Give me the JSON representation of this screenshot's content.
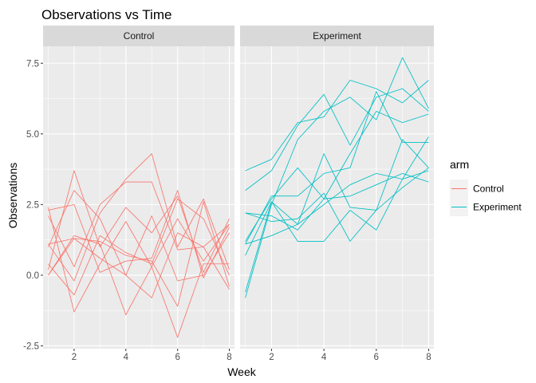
{
  "chart_data": {
    "type": "line",
    "title": "Observations vs Time",
    "xlabel": "Week",
    "ylabel": "Observations",
    "xlim": [
      0.8,
      8.2
    ],
    "ylim": [
      -2.6,
      8.1
    ],
    "x_ticks": [
      2,
      4,
      6,
      8
    ],
    "y_ticks": [
      -2.5,
      0,
      2.5,
      5,
      7.5
    ],
    "y_tick_labels": [
      "-2.5",
      "0.0",
      "2.5",
      "5.0",
      "7.5"
    ],
    "grid": true,
    "legend": {
      "title": "arm",
      "position": "right",
      "entries": [
        {
          "label": "Control",
          "color": "#F8766D"
        },
        {
          "label": "Experiment",
          "color": "#00BFC4"
        }
      ]
    },
    "x": [
      1,
      2,
      3,
      4,
      5,
      6,
      7,
      8
    ],
    "panels": [
      {
        "name": "Control",
        "color": "#F8766D",
        "series": [
          {
            "values": [
              0.2,
              3.7,
              1.0,
              2.4,
              1.5,
              2.8,
              0.1,
              2.0
            ]
          },
          {
            "values": [
              1.1,
              -0.2,
              2.2,
              3.4,
              4.3,
              1.0,
              2.7,
              0.2
            ]
          },
          {
            "values": [
              0.0,
              1.4,
              1.1,
              -1.4,
              0.3,
              -2.2,
              0.4,
              0.4
            ]
          },
          {
            "values": [
              2.3,
              2.5,
              0.1,
              0.5,
              0.6,
              3.0,
              -0.1,
              1.7
            ]
          },
          {
            "values": [
              2.1,
              0.3,
              2.5,
              3.3,
              3.3,
              0.9,
              1.0,
              -0.5
            ]
          },
          {
            "values": [
              0.4,
              -0.7,
              1.4,
              0.8,
              0.4,
              2.7,
              2.0,
              0.0
            ]
          },
          {
            "values": [
              1.0,
              3.0,
              2.0,
              0.0,
              2.1,
              -0.2,
              0.0,
              1.5
            ]
          },
          {
            "values": [
              0.0,
              1.3,
              0.6,
              0.0,
              -0.8,
              1.5,
              1.0,
              1.8
            ]
          },
          {
            "values": [
              1.1,
              1.3,
              1.2,
              0.7,
              0.5,
              -1.1,
              2.6,
              -0.4
            ]
          },
          {
            "values": [
              2.4,
              -1.3,
              0.4,
              1.9,
              0.3,
              2.0,
              0.5,
              1.8
            ]
          }
        ]
      },
      {
        "name": "Experiment",
        "color": "#00BFC4",
        "series": [
          {
            "values": [
              3.7,
              4.1,
              5.4,
              5.6,
              6.9,
              6.6,
              6.1,
              6.9
            ]
          },
          {
            "values": [
              3.0,
              3.7,
              5.3,
              6.4,
              4.6,
              6.3,
              6.6,
              5.8
            ]
          },
          {
            "values": [
              -0.8,
              2.5,
              4.8,
              5.8,
              6.3,
              5.5,
              7.7,
              5.9
            ]
          },
          {
            "values": [
              1.2,
              2.7,
              3.8,
              2.7,
              4.3,
              5.8,
              5.4,
              5.7
            ]
          },
          {
            "values": [
              1.1,
              2.8,
              2.8,
              3.6,
              3.8,
              6.5,
              4.7,
              4.7
            ]
          },
          {
            "values": [
              -0.6,
              2.6,
              1.8,
              4.3,
              2.4,
              2.3,
              4.8,
              3.8
            ]
          },
          {
            "values": [
              2.2,
              2.1,
              1.6,
              2.7,
              2.8,
              3.2,
              3.6,
              3.3
            ]
          },
          {
            "values": [
              0.7,
              2.6,
              1.2,
              1.2,
              2.3,
              1.6,
              3.4,
              4.9
            ]
          },
          {
            "values": [
              1.1,
              1.4,
              1.8,
              2.5,
              3.2,
              3.6,
              3.4,
              3.7
            ]
          },
          {
            "values": [
              2.2,
              1.9,
              2.0,
              2.9,
              1.2,
              2.3,
              3.1,
              3.8
            ]
          }
        ]
      }
    ]
  }
}
